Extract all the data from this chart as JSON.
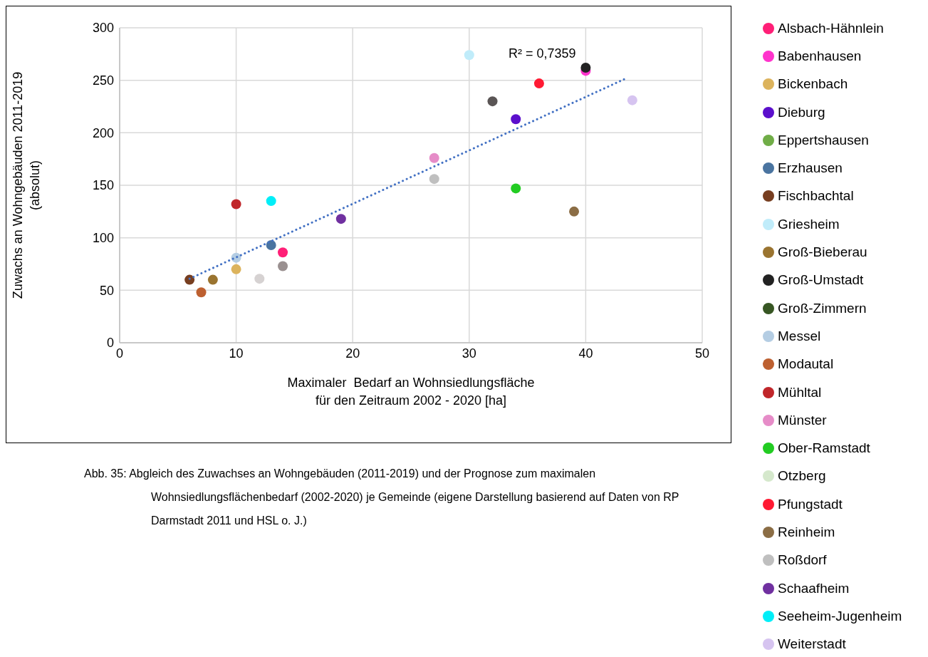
{
  "chart_data": {
    "type": "scatter",
    "xlabel": "Maximaler  Bedarf an Wohnsiedlungsfläche\nfür den Zeitraum 2002 - 2020 [ha]",
    "ylabel": "Zuwachs an Wohngebäuden 2011-2019\n(absolut)",
    "xlim": [
      0,
      50
    ],
    "xticks": [
      0,
      10,
      20,
      30,
      40,
      50
    ],
    "ylim": [
      0,
      300
    ],
    "yticks": [
      0,
      50,
      100,
      150,
      200,
      250,
      300
    ],
    "grid": true,
    "legend": "right",
    "marker": "circle",
    "annotations": [
      "R² = 0,7359",
      "Abb. 35: Abgleich des Zuwachses an Wohngebäuden (2011-2019) und der Prognose zum maximalen Wohnsiedlungsflächenbedarf (2002-2020) je Gemeinde (eigene Darstellung basierend auf Daten von RP Darmstadt 2011 und HSL o. J.)"
    ],
    "series": [
      {
        "name": "Alsbach-Hähnlein",
        "color": "#ff1f77",
        "x": [
          14
        ],
        "values": [
          86
        ]
      },
      {
        "name": "Babenhausen",
        "color": "#ff33cc",
        "x": [
          40
        ],
        "values": [
          259
        ]
      },
      {
        "name": "Bickenbach",
        "color": "#dcb35c",
        "x": [
          10
        ],
        "values": [
          70
        ]
      },
      {
        "name": "Dieburg",
        "color": "#5b0fcc",
        "x": [
          34
        ],
        "values": [
          213
        ]
      },
      {
        "name": "Eppertshausen",
        "color": "#70ad47",
        "x": [
          null
        ],
        "values": [
          null
        ]
      },
      {
        "name": "Erzhausen",
        "color": "#4a74a0",
        "x": [
          13
        ],
        "values": [
          93
        ]
      },
      {
        "name": "Fischbachtal",
        "color": "#773e20",
        "x": [
          6
        ],
        "values": [
          60
        ]
      },
      {
        "name": "Griesheim",
        "color": "#c0ecfa",
        "x": [
          30
        ],
        "values": [
          274
        ]
      },
      {
        "name": "Groß-Bieberau",
        "color": "#9a7430",
        "x": [
          8
        ],
        "values": [
          60
        ]
      },
      {
        "name": "Groß-Umstadt",
        "color": "#222222",
        "x": [
          40
        ],
        "values": [
          262
        ]
      },
      {
        "name": "Groß-Zimmern",
        "color": "#375623",
        "x": [
          null
        ],
        "values": [
          null
        ]
      },
      {
        "name": "Messel",
        "color": "#b4cde3",
        "x": [
          10
        ],
        "values": [
          81
        ]
      },
      {
        "name": "Modautal",
        "color": "#bd6030",
        "x": [
          7
        ],
        "values": [
          48
        ]
      },
      {
        "name": "Mühltal",
        "color": "#c0262a",
        "x": [
          10
        ],
        "values": [
          132
        ]
      },
      {
        "name": "Münster",
        "color": "#e68cc8",
        "x": [
          27
        ],
        "values": [
          176
        ]
      },
      {
        "name": "Ober-Ramstadt",
        "color": "#22cc22",
        "x": [
          34
        ],
        "values": [
          147
        ]
      },
      {
        "name": "Otzberg",
        "color": "#d5e8cc",
        "x": [
          null
        ],
        "values": [
          null
        ]
      },
      {
        "name": "Pfungstadt",
        "color": "#ff1a33",
        "x": [
          36
        ],
        "values": [
          247
        ]
      },
      {
        "name": "Reinheim",
        "color": "#8b6d45",
        "x": [
          39
        ],
        "values": [
          125
        ]
      },
      {
        "name": "Roßdorf",
        "color": "#bfbfbf",
        "x": [
          27
        ],
        "values": [
          156
        ]
      },
      {
        "name": "Schaafheim",
        "color": "#7030a0",
        "x": [
          19
        ],
        "values": [
          118
        ]
      },
      {
        "name": "Seeheim-Jugenheim",
        "color": "#00eef8",
        "x": [
          13
        ],
        "values": [
          135
        ]
      },
      {
        "name": "Weiterstadt",
        "color": "#d6c4f0",
        "x": [
          44
        ],
        "values": [
          231
        ]
      },
      {
        "color": "#d6d2d2",
        "x": [
          12
        ],
        "values": [
          61
        ]
      },
      {
        "color": "#9a9090",
        "x": [
          14
        ],
        "values": [
          73
        ]
      },
      {
        "color": "#5a5555",
        "x": [
          32
        ],
        "values": [
          230
        ]
      },
      {
        "type": "line",
        "color": "#4472c4",
        "line_style": "dotted",
        "marker": "none",
        "x": [
          6,
          43.5
        ],
        "values": [
          61,
          252
        ]
      }
    ]
  }
}
